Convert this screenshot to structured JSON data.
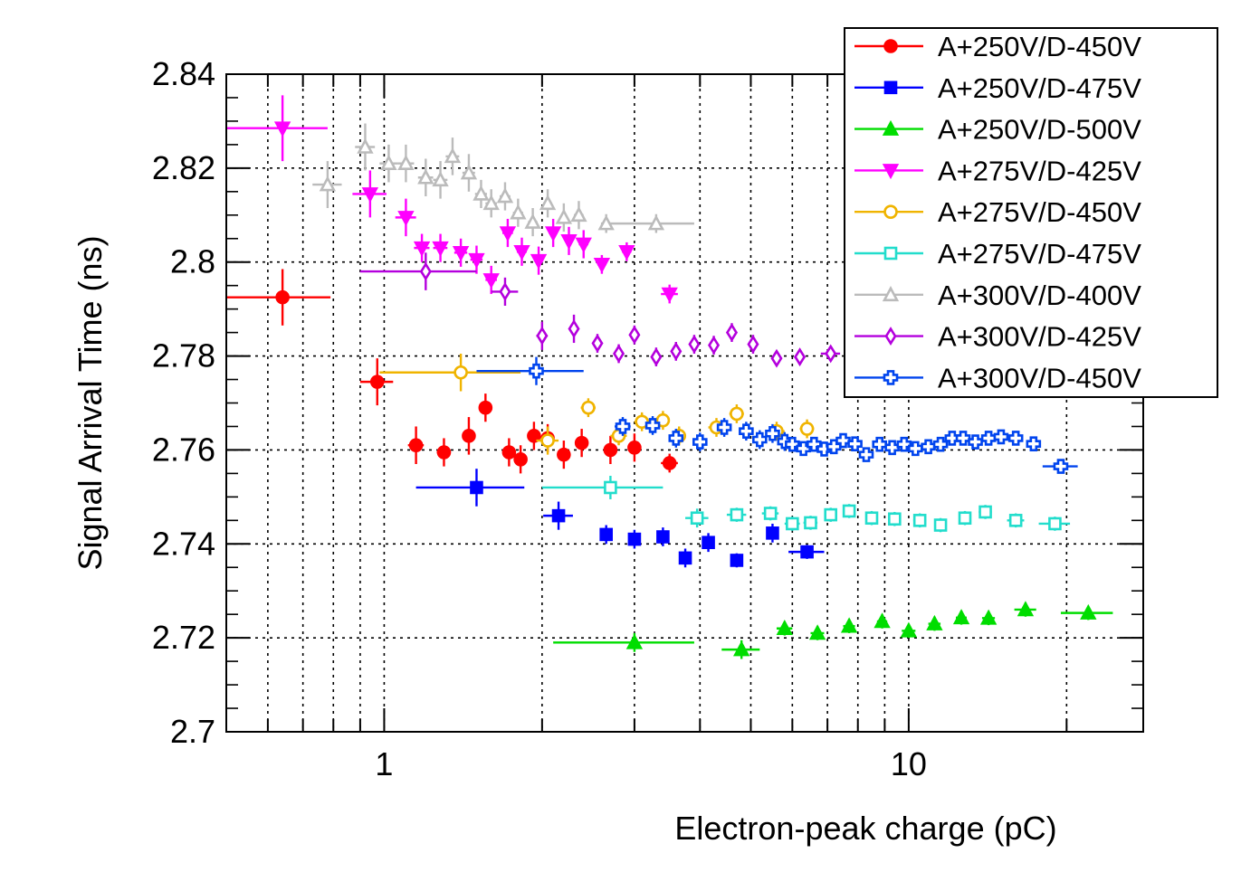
{
  "chart_data": {
    "type": "scatter",
    "title": "",
    "xlabel": "Electron-peak charge (pC)",
    "ylabel": "Signal Arrival Time (ns)",
    "xscale": "log",
    "xlim": [
      0.5,
      28
    ],
    "ylim": [
      2.7,
      2.84
    ],
    "grid": true,
    "legend_position": "top-right",
    "y_ticks": [
      {
        "value": 2.7,
        "label": "2.7"
      },
      {
        "value": 2.72,
        "label": "2.72"
      },
      {
        "value": 2.74,
        "label": "2.74"
      },
      {
        "value": 2.76,
        "label": "2.76"
      },
      {
        "value": 2.78,
        "label": "2.78"
      },
      {
        "value": 2.8,
        "label": "2.8"
      },
      {
        "value": 2.82,
        "label": "2.82"
      },
      {
        "value": 2.84,
        "label": "2.84"
      }
    ],
    "x_ticks": [
      {
        "value": 1,
        "label": "1"
      },
      {
        "value": 10,
        "label": "10"
      }
    ],
    "series": [
      {
        "name": "A+250V/D-450V",
        "color": "#ff0000",
        "marker": "circle",
        "filled": true,
        "x": [
          0.64,
          0.97,
          1.15,
          1.3,
          1.45,
          1.56,
          1.73,
          1.82,
          1.93,
          2.05,
          2.2,
          2.38,
          2.7,
          3.0,
          3.5
        ],
        "y": [
          2.7925,
          2.7745,
          2.761,
          2.7595,
          2.763,
          2.769,
          2.7595,
          2.758,
          2.763,
          2.7625,
          2.759,
          2.7615,
          2.76,
          2.7605,
          2.7572
        ],
        "xerr": [
          0.15,
          0.07,
          0.04,
          0.04,
          0.04,
          0.04,
          0.04,
          0.04,
          0.04,
          0.04,
          0.04,
          0.05,
          0.06,
          0.06,
          0.13
        ],
        "yerr": [
          0.006,
          0.005,
          0.004,
          0.003,
          0.004,
          0.003,
          0.003,
          0.003,
          0.003,
          0.003,
          0.003,
          0.003,
          0.003,
          0.003,
          0.002
        ]
      },
      {
        "name": "A+250V/D-475V",
        "color": "#0000ff",
        "marker": "square",
        "filled": true,
        "x": [
          1.5,
          2.15,
          2.65,
          3.0,
          3.4,
          3.75,
          4.15,
          4.7,
          5.5,
          6.4
        ],
        "y": [
          2.752,
          2.746,
          2.742,
          2.741,
          2.7415,
          2.737,
          2.7403,
          2.7365,
          2.7423,
          2.7383
        ],
        "xerr": [
          0.35,
          0.14,
          0.07,
          0.08,
          0.09,
          0.09,
          0.09,
          0.12,
          0.14,
          0.5
        ],
        "yerr": [
          0.004,
          0.003,
          0.002,
          0.002,
          0.002,
          0.002,
          0.002,
          0.0015,
          0.002,
          0.0015
        ]
      },
      {
        "name": "A+250V/D-500V",
        "color": "#00dd00",
        "marker": "triangle-up",
        "filled": true,
        "x": [
          3.0,
          4.8,
          5.8,
          6.7,
          7.7,
          8.9,
          10.0,
          11.2,
          12.6,
          14.2,
          16.7,
          22.0
        ],
        "y": [
          2.719,
          2.7175,
          2.722,
          2.721,
          2.7225,
          2.7235,
          2.7215,
          2.723,
          2.7243,
          2.7242,
          2.726,
          2.7253
        ],
        "xerr": [
          0.9,
          0.4,
          0.2,
          0.2,
          0.2,
          0.2,
          0.3,
          0.3,
          0.3,
          0.4,
          0.8,
          2.5
        ],
        "yerr": [
          0.002,
          0.002,
          0.0015,
          0.0015,
          0.0015,
          0.0015,
          0.0015,
          0.0015,
          0.0015,
          0.0015,
          0.0015,
          0.0015
        ]
      },
      {
        "name": "A+275V/D-425V",
        "color": "#ff00ff",
        "marker": "triangle-down",
        "filled": true,
        "x": [
          0.64,
          0.94,
          1.1,
          1.18,
          1.28,
          1.4,
          1.5,
          1.6,
          1.72,
          1.83,
          1.97,
          2.1,
          2.25,
          2.4,
          2.6,
          2.9,
          3.5
        ],
        "y": [
          2.8285,
          2.8145,
          2.8095,
          2.803,
          2.803,
          2.802,
          2.8005,
          2.7962,
          2.8062,
          2.8022,
          2.8003,
          2.8062,
          2.8045,
          2.8038,
          2.7995,
          2.8022,
          2.7932
        ],
        "xerr": [
          0.14,
          0.07,
          0.05,
          0.04,
          0.04,
          0.04,
          0.04,
          0.04,
          0.04,
          0.04,
          0.04,
          0.04,
          0.04,
          0.05,
          0.05,
          0.06,
          0.13
        ],
        "yerr": [
          0.007,
          0.005,
          0.004,
          0.003,
          0.003,
          0.003,
          0.003,
          0.003,
          0.003,
          0.003,
          0.003,
          0.003,
          0.003,
          0.003,
          0.002,
          0.002,
          0.002
        ]
      },
      {
        "name": "A+275V/D-450V",
        "color": "#f0b400",
        "marker": "circle",
        "filled": false,
        "x": [
          1.4,
          2.05,
          2.45,
          2.8,
          3.1,
          3.4,
          3.65,
          4.3,
          4.7,
          5.6,
          6.4
        ],
        "y": [
          2.7765,
          2.762,
          2.769,
          2.763,
          2.766,
          2.7663,
          2.763,
          2.7648,
          2.7677,
          2.764,
          2.7645
        ],
        "xerr": [
          0.42,
          0.1,
          0.08,
          0.1,
          0.1,
          0.1,
          0.1,
          0.15,
          0.15,
          0.2,
          0.2
        ],
        "yerr": [
          0.004,
          0.003,
          0.002,
          0.002,
          0.002,
          0.002,
          0.002,
          0.002,
          0.002,
          0.002,
          0.002
        ]
      },
      {
        "name": "A+275V/D-475V",
        "color": "#22ddcc",
        "marker": "square",
        "filled": false,
        "x": [
          2.7,
          3.95,
          4.7,
          5.45,
          6.0,
          6.5,
          7.1,
          7.7,
          8.5,
          9.4,
          10.5,
          11.5,
          12.8,
          14.0,
          16.0,
          19.0
        ],
        "y": [
          2.752,
          2.7455,
          2.7462,
          2.7465,
          2.7443,
          2.7445,
          2.7462,
          2.747,
          2.7455,
          2.7453,
          2.745,
          2.744,
          2.7455,
          2.7468,
          2.745,
          2.7443
        ],
        "xerr": [
          0.7,
          0.2,
          0.2,
          0.2,
          0.2,
          0.2,
          0.2,
          0.2,
          0.2,
          0.2,
          0.3,
          0.3,
          0.3,
          0.4,
          0.6,
          1.3
        ],
        "yerr": [
          0.0025,
          0.002,
          0.0015,
          0.0015,
          0.0015,
          0.0015,
          0.0015,
          0.0015,
          0.0015,
          0.0015,
          0.0015,
          0.0015,
          0.0015,
          0.0015,
          0.0015,
          0.0015
        ]
      },
      {
        "name": "A+300V/D-400V",
        "color": "#bbbbbb",
        "marker": "triangle-up",
        "filled": false,
        "x": [
          0.78,
          0.92,
          1.02,
          1.1,
          1.2,
          1.28,
          1.35,
          1.45,
          1.53,
          1.6,
          1.7,
          1.8,
          1.92,
          2.05,
          2.2,
          2.35,
          2.65,
          3.3
        ],
        "y": [
          2.8165,
          2.8245,
          2.821,
          2.821,
          2.818,
          2.8175,
          2.8225,
          2.819,
          2.8145,
          2.8125,
          2.814,
          2.8105,
          2.8085,
          2.8125,
          2.8095,
          2.81,
          2.8082,
          2.8082
        ],
        "xerr": [
          0.05,
          0.04,
          0.04,
          0.04,
          0.04,
          0.04,
          0.04,
          0.04,
          0.04,
          0.04,
          0.04,
          0.04,
          0.04,
          0.04,
          0.04,
          0.05,
          0.06,
          0.6
        ],
        "yerr": [
          0.005,
          0.005,
          0.004,
          0.004,
          0.004,
          0.004,
          0.004,
          0.004,
          0.003,
          0.003,
          0.003,
          0.003,
          0.003,
          0.003,
          0.003,
          0.003,
          0.002,
          0.002
        ]
      },
      {
        "name": "A+300V/D-425V",
        "color": "#b400dd",
        "marker": "diamond",
        "filled": false,
        "x": [
          1.2,
          1.7,
          2.0,
          2.3,
          2.55,
          2.8,
          3.0,
          3.3,
          3.6,
          3.9,
          4.25,
          4.6,
          5.05,
          5.6,
          6.2,
          7.1
        ],
        "y": [
          2.798,
          2.7937,
          2.7843,
          2.7858,
          2.7827,
          2.7805,
          2.7845,
          2.7798,
          2.781,
          2.7825,
          2.7823,
          2.785,
          2.7825,
          2.7795,
          2.7798,
          2.7805
        ],
        "xerr": [
          0.3,
          0.1,
          0.05,
          0.05,
          0.05,
          0.05,
          0.06,
          0.06,
          0.06,
          0.06,
          0.08,
          0.08,
          0.1,
          0.1,
          0.15,
          0.3
        ],
        "yerr": [
          0.004,
          0.003,
          0.003,
          0.003,
          0.002,
          0.002,
          0.002,
          0.002,
          0.002,
          0.002,
          0.002,
          0.002,
          0.002,
          0.0015,
          0.0015,
          0.0015
        ]
      },
      {
        "name": "A+300V/D-450V",
        "color": "#0044ee",
        "marker": "cross",
        "filled": false,
        "x": [
          1.95,
          2.85,
          3.25,
          3.6,
          4.0,
          4.45,
          4.9,
          5.2,
          5.5,
          5.8,
          6.0,
          6.3,
          6.6,
          6.9,
          7.2,
          7.5,
          7.9,
          8.3,
          8.8,
          9.3,
          9.8,
          10.3,
          10.9,
          11.5,
          12.1,
          12.7,
          13.4,
          14.2,
          15.0,
          16.0,
          17.3,
          19.5
        ],
        "y": [
          2.7768,
          2.765,
          2.7652,
          2.7625,
          2.7617,
          2.7648,
          2.764,
          2.7622,
          2.7635,
          2.7618,
          2.7612,
          2.7603,
          2.7612,
          2.7602,
          2.7607,
          2.762,
          2.7613,
          2.759,
          2.7612,
          2.7605,
          2.7612,
          2.7603,
          2.7607,
          2.7612,
          2.7625,
          2.7625,
          2.7617,
          2.7625,
          2.7628,
          2.7625,
          2.7613,
          2.7565
        ],
        "xerr": [
          0.45,
          0.1,
          0.1,
          0.1,
          0.1,
          0.1,
          0.1,
          0.1,
          0.1,
          0.1,
          0.1,
          0.1,
          0.1,
          0.1,
          0.1,
          0.12,
          0.12,
          0.12,
          0.12,
          0.15,
          0.15,
          0.15,
          0.15,
          0.15,
          0.2,
          0.2,
          0.2,
          0.2,
          0.25,
          0.3,
          0.5,
          1.5
        ],
        "yerr": [
          0.003,
          0.002,
          0.002,
          0.002,
          0.002,
          0.002,
          0.002,
          0.002,
          0.002,
          0.002,
          0.0015,
          0.0015,
          0.0015,
          0.0015,
          0.0015,
          0.0015,
          0.0015,
          0.0015,
          0.0015,
          0.0015,
          0.0015,
          0.0015,
          0.0015,
          0.0015,
          0.0015,
          0.0015,
          0.0015,
          0.0015,
          0.0015,
          0.0015,
          0.0015,
          0.0015
        ]
      }
    ]
  }
}
